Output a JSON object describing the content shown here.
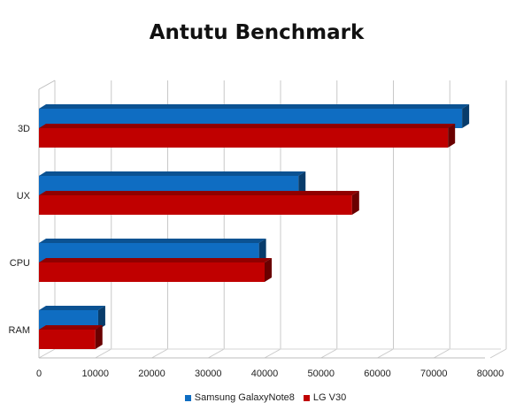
{
  "chart_data": {
    "type": "bar",
    "orientation": "horizontal",
    "title": "Antutu Benchmark",
    "categories": [
      "3D",
      "UX",
      "CPU",
      "RAM"
    ],
    "series": [
      {
        "name": "Samsung GalaxyNote8",
        "values": [
          75000,
          46000,
          39000,
          10500
        ],
        "color": "#0f6dc2"
      },
      {
        "name": "LG V30",
        "values": [
          72500,
          55500,
          40000,
          10000
        ],
        "color": "#c00000"
      }
    ],
    "xlim": [
      0,
      80000
    ],
    "xticks": [
      0,
      10000,
      20000,
      30000,
      40000,
      50000,
      60000,
      70000,
      80000
    ],
    "grid": true,
    "legend_position": "bottom",
    "style": "3d"
  }
}
